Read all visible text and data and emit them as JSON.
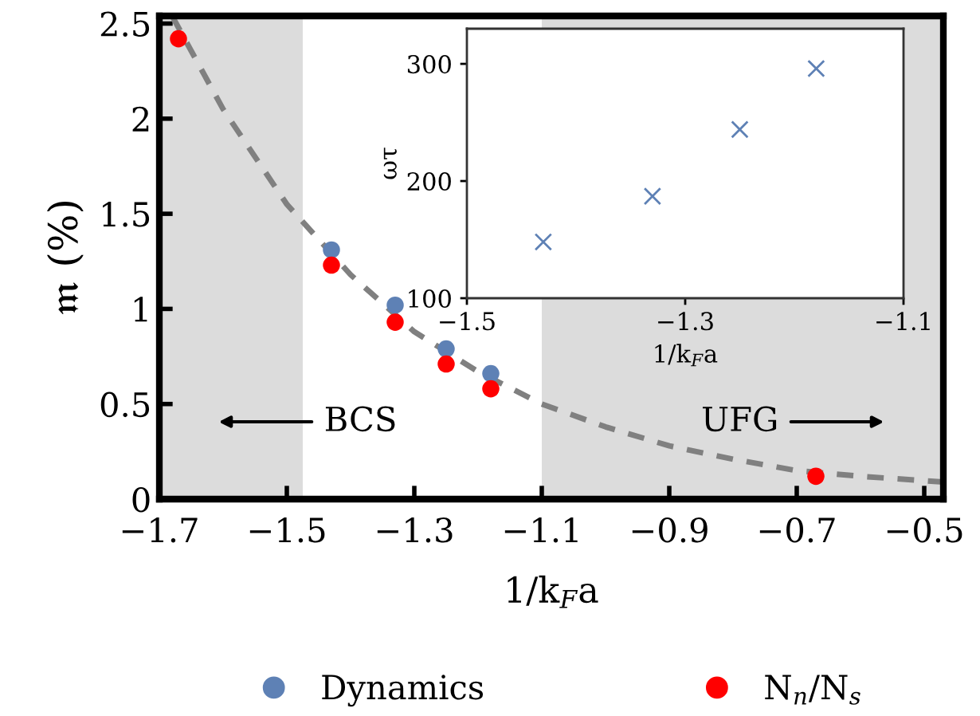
{
  "chart_data": [
    {
      "type": "scatter",
      "xlabel": "1/k$_{F}$a",
      "ylabel": "𝔪 (%)",
      "xlim": [
        -1.7,
        -0.47
      ],
      "ylim": [
        0,
        2.54
      ],
      "xticks": [
        {
          "value": -1.7,
          "label": "−1.7"
        },
        {
          "value": -1.5,
          "label": "−1.5"
        },
        {
          "value": -1.3,
          "label": "−1.3"
        },
        {
          "value": -1.1,
          "label": "−1.1"
        },
        {
          "value": -0.9,
          "label": "−0.9"
        },
        {
          "value": -0.7,
          "label": "−0.7"
        },
        {
          "value": -0.5,
          "label": "−0.5"
        }
      ],
      "yticks": [
        0,
        0.5,
        1,
        1.5,
        2,
        2.5
      ],
      "marker": "circle",
      "grid": false,
      "legend": "bottom",
      "bands": [
        {
          "axis": "x",
          "from": -1.7,
          "to": -1.475,
          "color": "#dcdcdc"
        },
        {
          "axis": "x",
          "from": -1.1,
          "to": -0.47,
          "color": "#dcdcdc"
        }
      ],
      "annotations": [
        "BCS",
        "UFG"
      ],
      "series": [
        {
          "type": "line",
          "line_style": "dashed",
          "marker": "none",
          "color": "#808080",
          "x": [
            -1.68,
            -1.6,
            -1.5,
            -1.4,
            -1.3,
            -1.2,
            -1.1,
            -1.0,
            -0.9,
            -0.8,
            -0.7,
            -0.6,
            -0.47
          ],
          "values": [
            2.54,
            2.05,
            1.55,
            1.18,
            0.88,
            0.67,
            0.5,
            0.38,
            0.28,
            0.21,
            0.15,
            0.12,
            0.09
          ]
        },
        {
          "name": "Dynamics",
          "color": "#5e81b5",
          "x": [
            -1.43,
            -1.33,
            -1.25,
            -1.18
          ],
          "values": [
            1.31,
            1.02,
            0.79,
            0.66
          ]
        },
        {
          "name": "N$_{n}$/N$_{s}$",
          "color": "#ff0000",
          "x": [
            -1.67,
            -1.43,
            -1.33,
            -1.25,
            -1.18,
            -0.67
          ],
          "values": [
            2.42,
            1.23,
            0.93,
            0.71,
            0.58,
            0.12
          ]
        }
      ]
    },
    {
      "type": "scatter",
      "xlabel": "1/k$_{F}$a",
      "ylabel": "ωτ",
      "xlim": [
        -1.5,
        -1.1
      ],
      "ylim": [
        100,
        330
      ],
      "xticks": [
        {
          "value": -1.5,
          "label": "−1.5"
        },
        {
          "value": -1.3,
          "label": "−1.3"
        },
        {
          "value": -1.1,
          "label": "−1.1"
        }
      ],
      "yticks": [
        100,
        200,
        300
      ],
      "marker": "cross",
      "grid": false,
      "legend": false,
      "series": [
        {
          "color": "#5e81b5",
          "x": [
            -1.43,
            -1.33,
            -1.25,
            -1.18
          ],
          "values": [
            148,
            187,
            244,
            296
          ]
        }
      ]
    }
  ]
}
